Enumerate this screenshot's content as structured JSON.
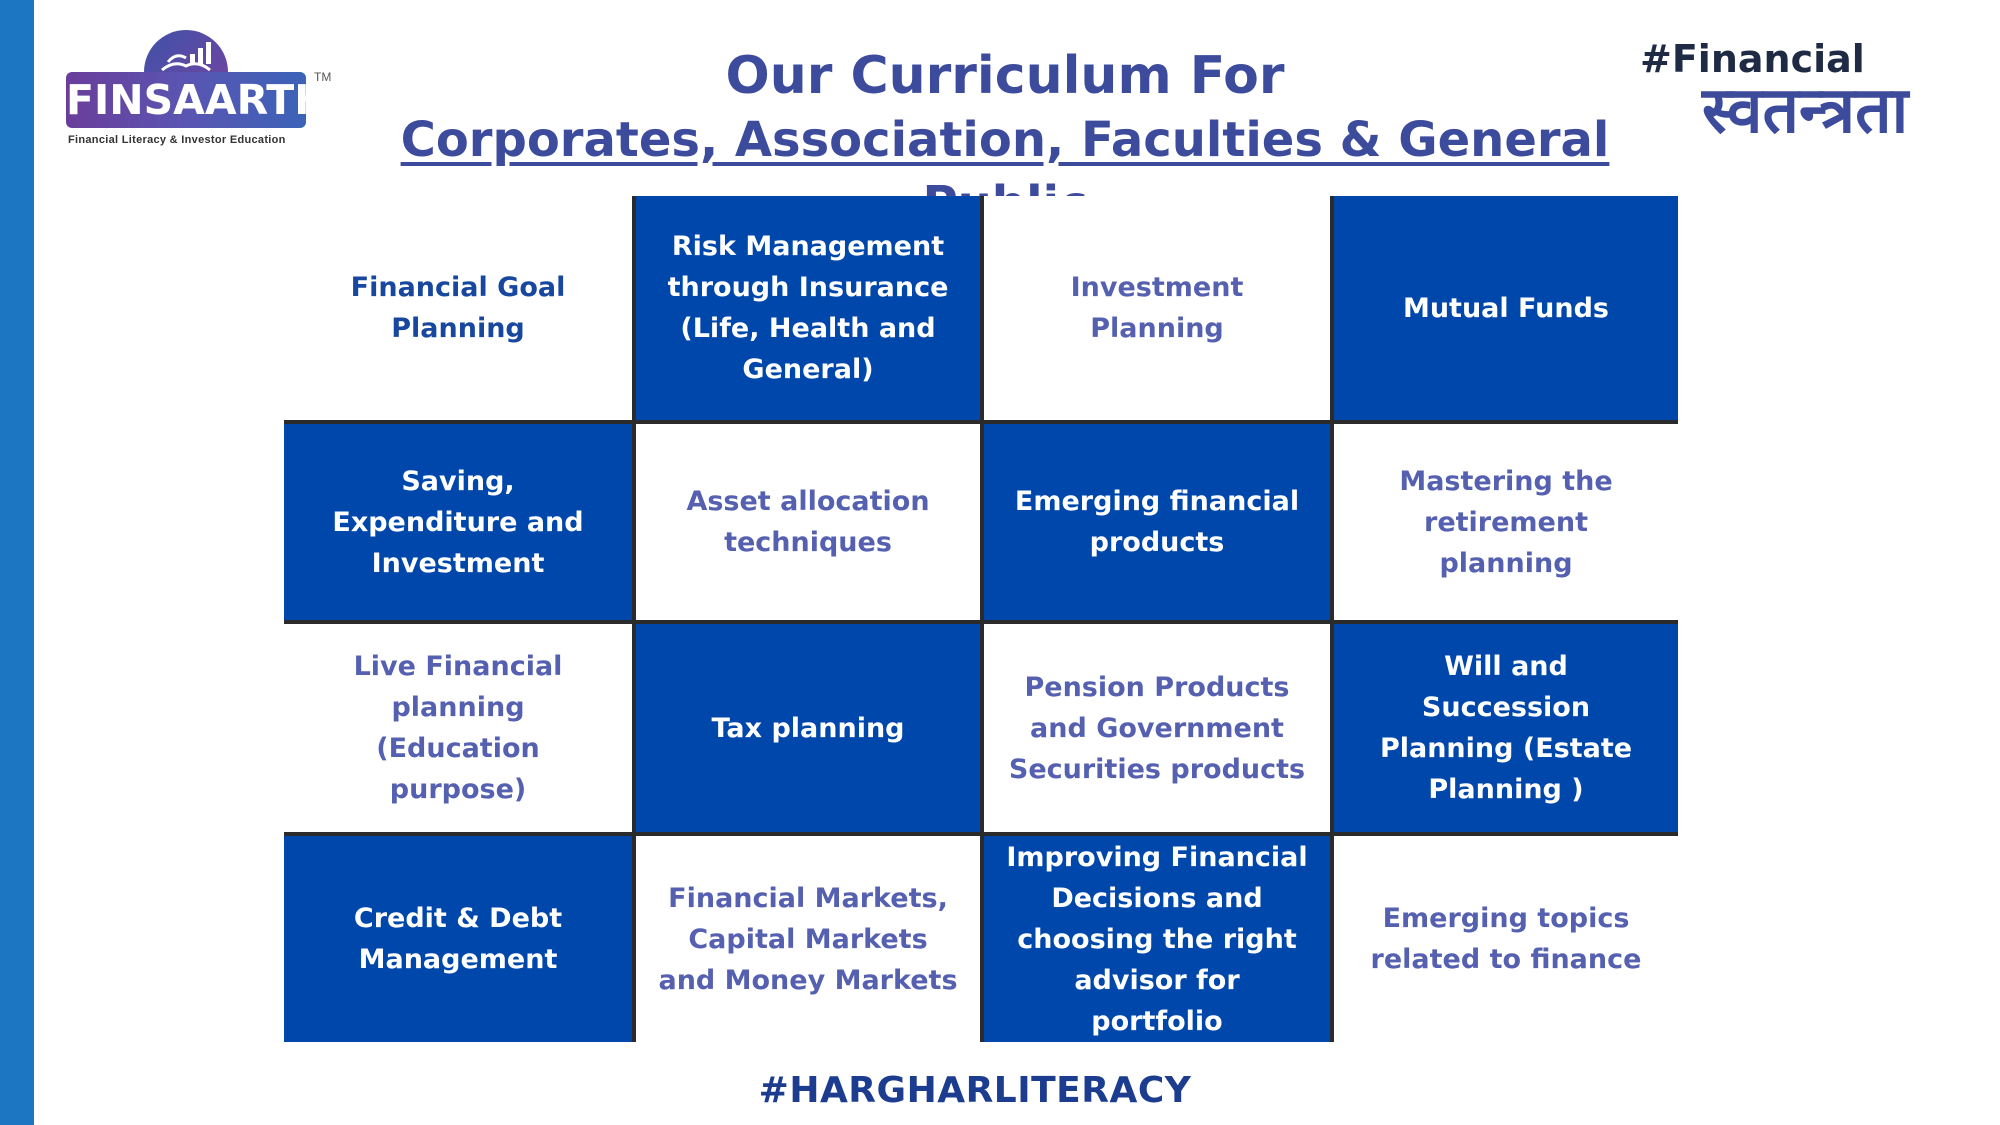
{
  "logo": {
    "name": "FINSAARTHI",
    "tm": "TM",
    "tagline": "Financial Literacy & Investor Education"
  },
  "title": {
    "line1": "Our Curriculum For",
    "line2": "Corporates, Association, Faculties & General Public"
  },
  "hashtag_top": {
    "line1": "#Financial",
    "line2": "स्वतन्त्रता"
  },
  "grid": {
    "cells": [
      {
        "label": "Financial Goal Planning",
        "style": "white"
      },
      {
        "label": "Risk Management through Insurance (Life, Health and General)",
        "style": "blue"
      },
      {
        "label": "Investment Planning",
        "style": "white"
      },
      {
        "label": "Mutual Funds",
        "style": "blue"
      },
      {
        "label": "Saving, Expenditure and Investment",
        "style": "blue"
      },
      {
        "label": "Asset allocation techniques",
        "style": "white"
      },
      {
        "label": "Emerging financial products",
        "style": "blue"
      },
      {
        "label": "Mastering the retirement planning",
        "style": "white"
      },
      {
        "label": "Live Financial planning (Education purpose)",
        "style": "white"
      },
      {
        "label": "Tax planning",
        "style": "blue"
      },
      {
        "label": "Pension Products and Government Securities products",
        "style": "white"
      },
      {
        "label": "Will and Succession Planning (Estate Planning )",
        "style": "blue"
      },
      {
        "label": "Credit & Debt Management",
        "style": "blue"
      },
      {
        "label": "Financial Markets, Capital Markets and Money Markets",
        "style": "white"
      },
      {
        "label": "Improving Financial Decisions and choosing the right advisor for  portfolio",
        "style": "blue"
      },
      {
        "label": "Emerging topics related to finance",
        "style": "white"
      }
    ]
  },
  "footer": {
    "hashtag": "#HARGHARLITERACY"
  },
  "colors": {
    "accent_blue": "#0047ab",
    "left_bar": "#1d76c1",
    "title": "#3d4b9c",
    "white_cell_text": "#5561b0"
  }
}
